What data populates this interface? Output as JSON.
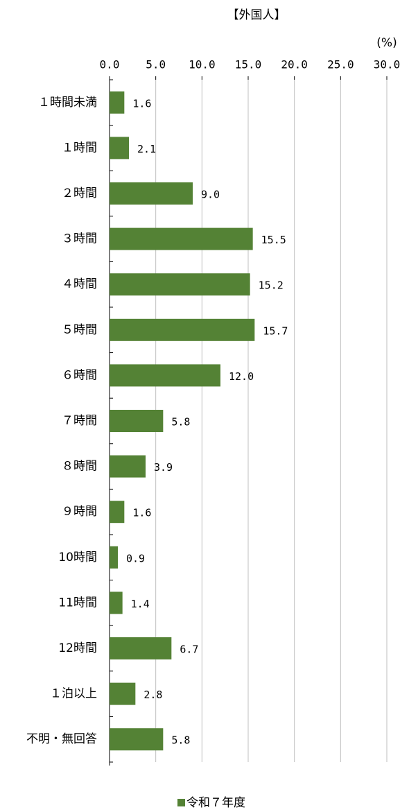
{
  "chart_data": {
    "type": "bar",
    "orientation": "horizontal",
    "title": "【外国人】",
    "unit_label": "(%)",
    "categories": [
      "１時間未満",
      "１時間",
      "２時間",
      "３時間",
      "４時間",
      "５時間",
      "６時間",
      "７時間",
      "８時間",
      "９時間",
      "10時間",
      "11時間",
      "12時間",
      "１泊以上",
      "不明・無回答"
    ],
    "series": [
      {
        "name": "令和７年度",
        "color": "#548235",
        "values": [
          1.6,
          2.1,
          9.0,
          15.5,
          15.2,
          15.7,
          12.0,
          5.8,
          3.9,
          1.6,
          0.9,
          1.4,
          6.7,
          2.8,
          5.8
        ],
        "value_labels": [
          "1.6",
          "2.1",
          "9.0",
          "15.5",
          "15.2",
          "15.7",
          "12.0",
          "5.8",
          "3.9",
          "1.6",
          "0.9",
          "1.4",
          "6.7",
          "2.8",
          "5.8"
        ]
      }
    ],
    "xlim": [
      0,
      30
    ],
    "xticks": [
      {
        "value": 0,
        "label": "0.0"
      },
      {
        "value": 5,
        "label": "5.0"
      },
      {
        "value": 10,
        "label": "10.0"
      },
      {
        "value": 15,
        "label": "15.0"
      },
      {
        "value": 20,
        "label": "20.0"
      },
      {
        "value": 25,
        "label": "25.0"
      },
      {
        "value": 30,
        "label": "30.0"
      }
    ],
    "grid": true,
    "legend": "bottom"
  }
}
